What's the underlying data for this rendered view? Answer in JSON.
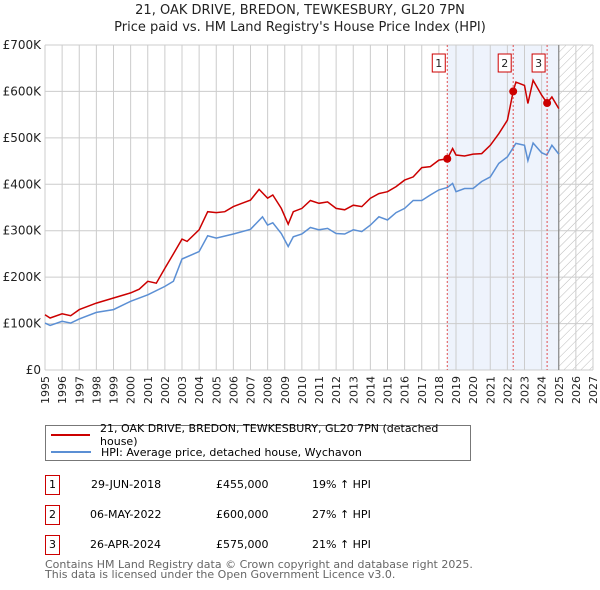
{
  "title": "21, OAK DRIVE, BREDON, TEWKESBURY, GL20 7PN",
  "subtitle": "Price paid vs. HM Land Registry's House Price Index (HPI)",
  "chart_data": {
    "type": "line",
    "title": "21, OAK DRIVE, BREDON, TEWKESBURY, GL20 7PN",
    "subtitle": "Price paid vs. HM Land Registry's House Price Index (HPI)",
    "xlim": [
      1995,
      2027
    ],
    "ylim": [
      0,
      700000
    ],
    "grid": true,
    "x_ticks": [
      "1995",
      "1996",
      "1997",
      "1998",
      "1999",
      "2000",
      "2001",
      "2002",
      "2003",
      "2004",
      "2005",
      "2006",
      "2007",
      "2008",
      "2009",
      "2010",
      "2011",
      "2012",
      "2013",
      "2014",
      "2015",
      "2016",
      "2017",
      "2018",
      "2019",
      "2020",
      "2021",
      "2022",
      "2023",
      "2024",
      "2025",
      "2026",
      "2027"
    ],
    "y_ticks": [
      {
        "v": 0,
        "label": "£0"
      },
      {
        "v": 100000,
        "label": "£100K"
      },
      {
        "v": 200000,
        "label": "£200K"
      },
      {
        "v": 300000,
        "label": "£300K"
      },
      {
        "v": 400000,
        "label": "£400K"
      },
      {
        "v": 500000,
        "label": "£500K"
      },
      {
        "v": 600000,
        "label": "£600K"
      },
      {
        "v": 700000,
        "label": "£700K"
      }
    ],
    "shaded_region": [
      2018.49,
      2025.0
    ],
    "hatched_region": [
      2025.0,
      2027
    ],
    "series": [
      {
        "name": "21, OAK DRIVE, BREDON, TEWKESBURY, GL20 7PN (detached house)",
        "color": "#cc0000",
        "x": [
          1995,
          1995.3,
          1996,
          1996.5,
          1997,
          1998,
          1999,
          2000,
          2000.5,
          2001,
          2001.5,
          2002,
          2002.5,
          2003,
          2003.3,
          2004,
          2004.5,
          2005,
          2005.5,
          2006,
          2006.5,
          2007,
          2007.5,
          2008,
          2008.3,
          2008.8,
          2009.2,
          2009.5,
          2010,
          2010.5,
          2011,
          2011.5,
          2012,
          2012.5,
          2013,
          2013.5,
          2014,
          2014.5,
          2015,
          2015.5,
          2016,
          2016.5,
          2017,
          2017.5,
          2018,
          2018.49,
          2018.8,
          2019,
          2019.5,
          2020,
          2020.5,
          2021,
          2021.5,
          2022,
          2022.34,
          2022.5,
          2023,
          2023.2,
          2023.5,
          2024,
          2024.32,
          2024.6,
          2025
        ],
        "y": [
          119000,
          112000,
          121000,
          117000,
          130000,
          144000,
          155000,
          166000,
          174000,
          191000,
          187000,
          219000,
          250000,
          282000,
          277000,
          302000,
          341000,
          339000,
          341000,
          352000,
          359000,
          366000,
          389000,
          370000,
          377000,
          348000,
          314000,
          341000,
          348000,
          365000,
          359000,
          362000,
          348000,
          345000,
          355000,
          352000,
          370000,
          380000,
          384000,
          395000,
          409000,
          416000,
          436000,
          438000,
          452000,
          455000,
          477000,
          463000,
          461000,
          465000,
          466000,
          484000,
          509000,
          538000,
          600000,
          620000,
          613000,
          574000,
          624000,
          592000,
          575000,
          588000,
          563000
        ]
      },
      {
        "name": "HPI: Average price, detached house, Wychavon",
        "color": "#5b8fd4",
        "x": [
          1995,
          1995.3,
          1996,
          1996.5,
          1997,
          1998,
          1999,
          2000,
          2001,
          2002,
          2002.5,
          2003,
          2004,
          2004.5,
          2005,
          2006,
          2007,
          2007.7,
          2008,
          2008.3,
          2008.8,
          2009.2,
          2009.5,
          2010,
          2010.5,
          2011,
          2011.5,
          2012,
          2012.5,
          2013,
          2013.5,
          2014,
          2014.5,
          2015,
          2015.5,
          2016,
          2016.5,
          2017,
          2017.5,
          2018,
          2018.5,
          2018.8,
          2019,
          2019.5,
          2020,
          2020.5,
          2021,
          2021.5,
          2022,
          2022.5,
          2023,
          2023.2,
          2023.5,
          2024,
          2024.3,
          2024.6,
          2025
        ],
        "y": [
          101000,
          96000,
          105000,
          101000,
          110000,
          124000,
          130000,
          148000,
          162000,
          180000,
          191000,
          239000,
          255000,
          289000,
          284000,
          293000,
          303000,
          330000,
          312000,
          317000,
          294000,
          266000,
          287000,
          293000,
          307000,
          302000,
          305000,
          294000,
          293000,
          302000,
          298000,
          312000,
          330000,
          323000,
          339000,
          348000,
          365000,
          365000,
          377000,
          388000,
          393000,
          402000,
          384000,
          391000,
          391000,
          406000,
          416000,
          445000,
          459000,
          488000,
          484000,
          451000,
          489000,
          468000,
          463000,
          484000,
          465000
        ]
      }
    ],
    "sales": [
      {
        "label": "1",
        "date": "29-JUN-2018",
        "x": 2018.49,
        "price": 455000,
        "price_label": "£455,000",
        "hpi": "19% ↑ HPI"
      },
      {
        "label": "2",
        "date": "06-MAY-2022",
        "x": 2022.34,
        "price": 600000,
        "price_label": "£600,000",
        "hpi": "27% ↑ HPI"
      },
      {
        "label": "3",
        "date": "26-APR-2024",
        "x": 2024.32,
        "price": 575000,
        "price_label": "£575,000",
        "hpi": "21% ↑ HPI"
      }
    ],
    "legend": [
      "21, OAK DRIVE, BREDON, TEWKESBURY, GL20 7PN (detached house)",
      "HPI: Average price, detached house, Wychavon"
    ],
    "legend_placement": "below"
  },
  "footer": [
    "Contains HM Land Registry data © Crown copyright and database right 2025.",
    "This data is licensed under the Open Government Licence v3.0."
  ]
}
